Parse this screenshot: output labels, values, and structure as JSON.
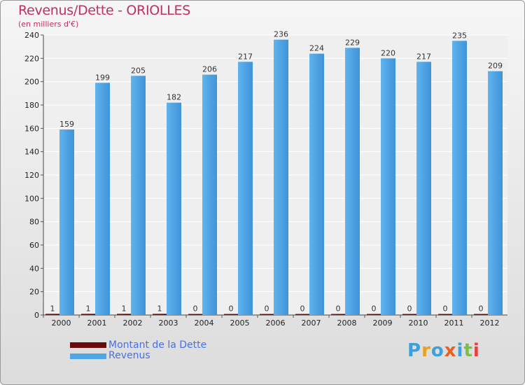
{
  "chart_data": {
    "type": "bar",
    "title": "Revenus/Dette - ORIOLLES",
    "ylabel": "(en milliers d'€)",
    "xlabel": "",
    "ylim": [
      0,
      240
    ],
    "yticks": [
      0,
      20,
      40,
      60,
      80,
      100,
      120,
      140,
      160,
      180,
      200,
      220,
      240
    ],
    "grid": true,
    "legend_position": "bottom-left",
    "categories": [
      "2000",
      "2001",
      "2002",
      "2003",
      "2004",
      "2005",
      "2006",
      "2007",
      "2008",
      "2009",
      "2010",
      "2011",
      "2012"
    ],
    "series": [
      {
        "name": "Montant de la Dette",
        "color": "#6b0a0a",
        "values": [
          1,
          1,
          1,
          1,
          0,
          0,
          0,
          0,
          0,
          0,
          0,
          0,
          0
        ]
      },
      {
        "name": "Revenus",
        "color": "#4fa5e6",
        "values": [
          159,
          199,
          205,
          182,
          206,
          217,
          236,
          224,
          229,
          220,
          217,
          235,
          209
        ]
      }
    ]
  },
  "logo": {
    "text": "Proxiti",
    "letter_colors": [
      "#3aa0e0",
      "#e8a020",
      "#3aa0e0",
      "#e86020",
      "#3aa0e0",
      "#7bc043",
      "#e84040"
    ]
  }
}
